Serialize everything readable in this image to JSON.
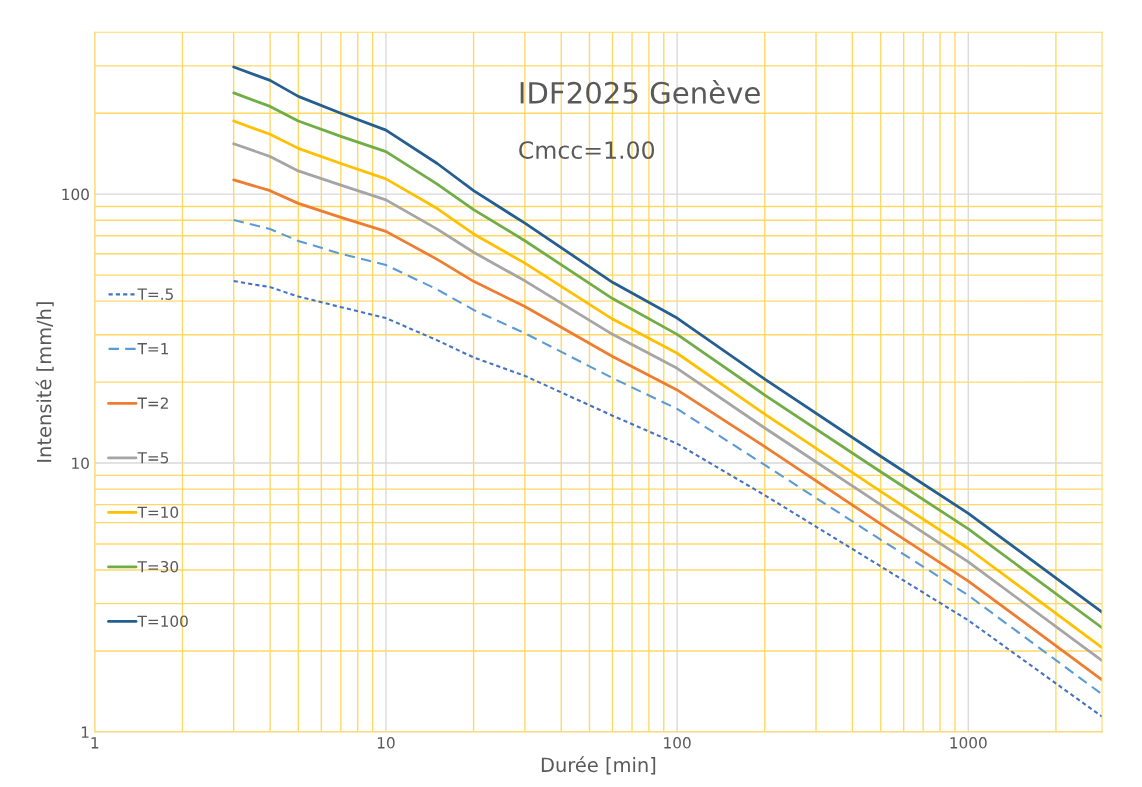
{
  "chart_data": {
    "type": "line",
    "title": "IDF2025 Genève",
    "subtitle": "Cmcc=1.00",
    "xlabel": "Durée [min]",
    "ylabel": "Intensité [mm/h]",
    "log": "xy",
    "grid": true,
    "legend": "left",
    "marker": "none",
    "xlim": [
      1,
      2880
    ],
    "ylim": [
      1,
      400
    ],
    "xticks": [
      1,
      {
        "value": 2,
        "label": null
      },
      {
        "value": 3,
        "label": null
      },
      {
        "value": 4,
        "label": null
      },
      {
        "value": 5,
        "label": null
      },
      {
        "value": 6,
        "label": null
      },
      {
        "value": 7,
        "label": null
      },
      {
        "value": 8,
        "label": null
      },
      {
        "value": 9,
        "label": null
      },
      10,
      {
        "value": 20,
        "label": null
      },
      {
        "value": 30,
        "label": null
      },
      {
        "value": 40,
        "label": null
      },
      {
        "value": 50,
        "label": null
      },
      {
        "value": 60,
        "label": null
      },
      {
        "value": 70,
        "label": null
      },
      {
        "value": 80,
        "label": null
      },
      {
        "value": 90,
        "label": null
      },
      100,
      {
        "value": 200,
        "label": null
      },
      {
        "value": 300,
        "label": null
      },
      {
        "value": 400,
        "label": null
      },
      {
        "value": 500,
        "label": null
      },
      {
        "value": 600,
        "label": null
      },
      {
        "value": 700,
        "label": null
      },
      {
        "value": 800,
        "label": null
      },
      {
        "value": 900,
        "label": null
      },
      1000,
      {
        "value": 2000,
        "label": null
      }
    ],
    "yticks": [
      1,
      {
        "value": 2,
        "label": null
      },
      {
        "value": 3,
        "label": null
      },
      {
        "value": 4,
        "label": null
      },
      {
        "value": 5,
        "label": null
      },
      {
        "value": 6,
        "label": null
      },
      {
        "value": 7,
        "label": null
      },
      {
        "value": 8,
        "label": null
      },
      {
        "value": 9,
        "label": null
      },
      10,
      {
        "value": 20,
        "label": null
      },
      {
        "value": 30,
        "label": null
      },
      {
        "value": 40,
        "label": null
      },
      {
        "value": 50,
        "label": null
      },
      {
        "value": 60,
        "label": null
      },
      {
        "value": 70,
        "label": null
      },
      {
        "value": 80,
        "label": null
      },
      {
        "value": 90,
        "label": null
      },
      100,
      {
        "value": 200,
        "label": null
      },
      {
        "value": 300,
        "label": null
      }
    ],
    "x": [
      3,
      4,
      5,
      7,
      10,
      15,
      20,
      30,
      60,
      100,
      200,
      500,
      1000,
      2880
    ],
    "series": [
      {
        "name": "T=.5",
        "color": "#4472c4",
        "line_style": "dotted",
        "values": [
          47.5,
          45.1,
          41.6,
          38,
          34.6,
          28.6,
          24.7,
          21.1,
          15.0,
          11.8,
          7.59,
          4.13,
          2.6,
          1.14
        ]
      },
      {
        "name": "T=1",
        "color": "#5b9bd5",
        "line_style": "dashed",
        "values": [
          80.2,
          74.2,
          67,
          60,
          54.5,
          44.2,
          37.1,
          30.4,
          20.7,
          15.9,
          9.84,
          5.19,
          3.22,
          1.38
        ]
      },
      {
        "name": "T=2",
        "color": "#ed7d31",
        "line_style": "solid",
        "values": [
          113,
          103,
          92.4,
          82,
          72.7,
          57.2,
          47.4,
          38.2,
          24.9,
          18.7,
          11.5,
          5.94,
          3.64,
          1.56
        ]
      },
      {
        "name": "T=5",
        "color": "#a5a5a5",
        "line_style": "solid",
        "values": [
          154,
          138,
          122,
          108,
          95.2,
          74.1,
          60.8,
          47.6,
          30.1,
          22.5,
          13.5,
          7.0,
          4.29,
          1.84
        ]
      },
      {
        "name": "T=10",
        "color": "#ffc000",
        "line_style": "solid",
        "values": [
          187,
          167,
          148,
          130,
          114,
          88.4,
          71.1,
          55.4,
          34.3,
          25.6,
          15.2,
          7.84,
          4.81,
          2.06
        ]
      },
      {
        "name": "T=30",
        "color": "#70ad47",
        "line_style": "solid",
        "values": [
          238,
          212,
          187,
          164,
          144,
          109,
          87.6,
          67.1,
          40.9,
          30.1,
          17.9,
          9.28,
          5.69,
          2.44
        ]
      },
      {
        "name": "T=100",
        "color": "#255e91",
        "line_style": "solid",
        "values": [
          297,
          265,
          231,
          200,
          173,
          130,
          103,
          78,
          47,
          34.6,
          20.5,
          10.6,
          6.5,
          2.79
        ]
      }
    ]
  }
}
